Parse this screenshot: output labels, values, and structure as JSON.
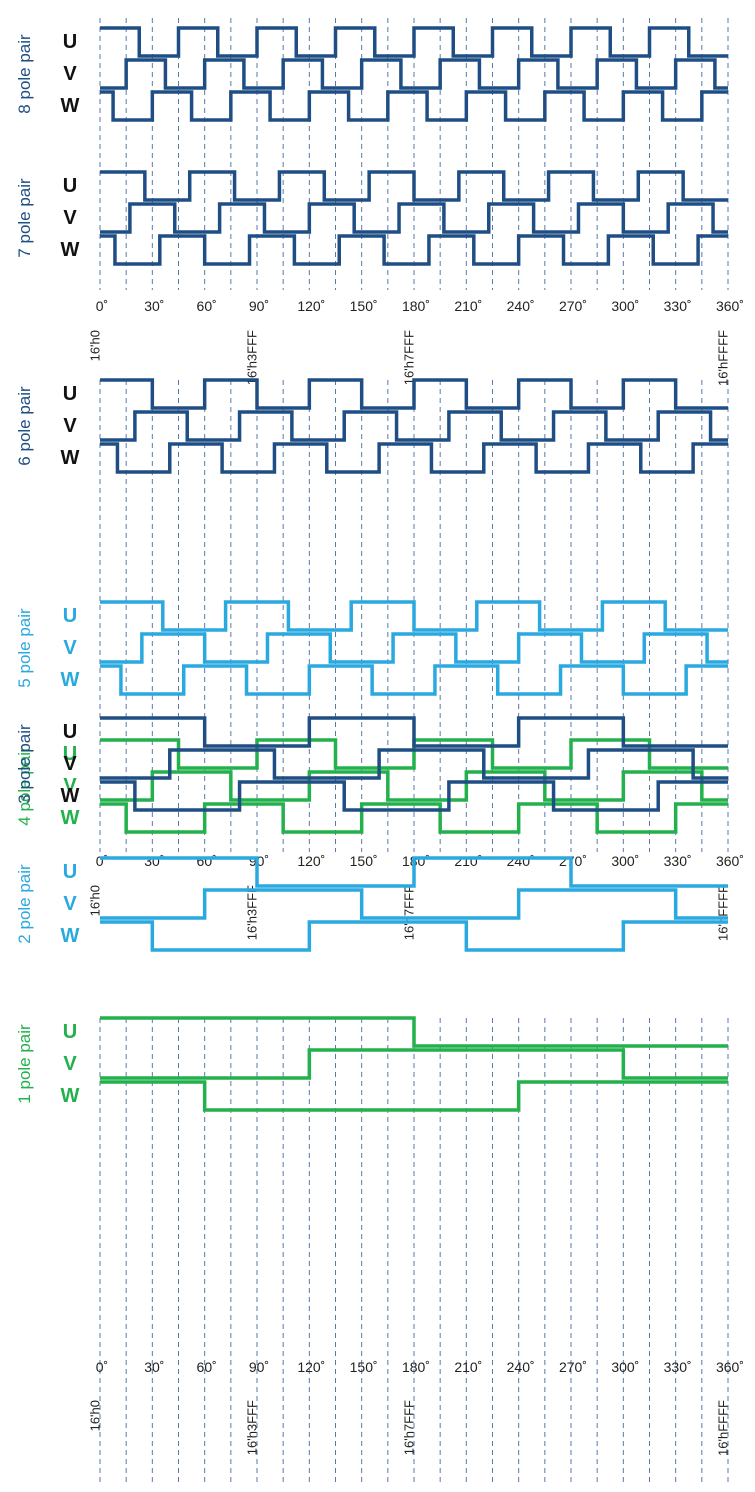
{
  "colors": {
    "dark_blue": "#1f4e84",
    "light_blue": "#2aa8e0",
    "green": "#22b14c",
    "grid": "#5a7aa8",
    "text": "#111111"
  },
  "phases": [
    "U",
    "V",
    "W"
  ],
  "angle_ticks": [
    "0˚",
    "30˚",
    "60˚",
    "90˚",
    "120˚",
    "150˚",
    "180˚",
    "210˚",
    "240˚",
    "270˚",
    "300˚",
    "330˚",
    "360˚"
  ],
  "hex_ticks": [
    "16'h0",
    "16'h3FFF",
    "16'h7FFF",
    "16'hFFFF"
  ],
  "panels": [
    {
      "id": "panel-top",
      "groups": [
        {
          "label": "8 pole pair",
          "pole_pairs": 8,
          "color": "dark_blue"
        },
        {
          "label": "7 pole pair",
          "pole_pairs": 7,
          "color": "dark_blue"
        }
      ]
    },
    {
      "id": "panel-middle",
      "groups": [
        {
          "label": "6 pole pair",
          "pole_pairs": 6,
          "color": "dark_blue"
        },
        {
          "label": "5 pole pair",
          "pole_pairs": 5,
          "color": "light_blue"
        },
        {
          "label": "4 pole pair",
          "pole_pairs": 4,
          "color": "green"
        }
      ]
    },
    {
      "id": "panel-bottom",
      "groups": [
        {
          "label": "3 pole pair",
          "pole_pairs": 3,
          "color": "dark_blue"
        },
        {
          "label": "2 pole pair",
          "pole_pairs": 2,
          "color": "light_blue"
        },
        {
          "label": "1 pole pair",
          "pole_pairs": 1,
          "color": "green"
        }
      ]
    }
  ]
}
